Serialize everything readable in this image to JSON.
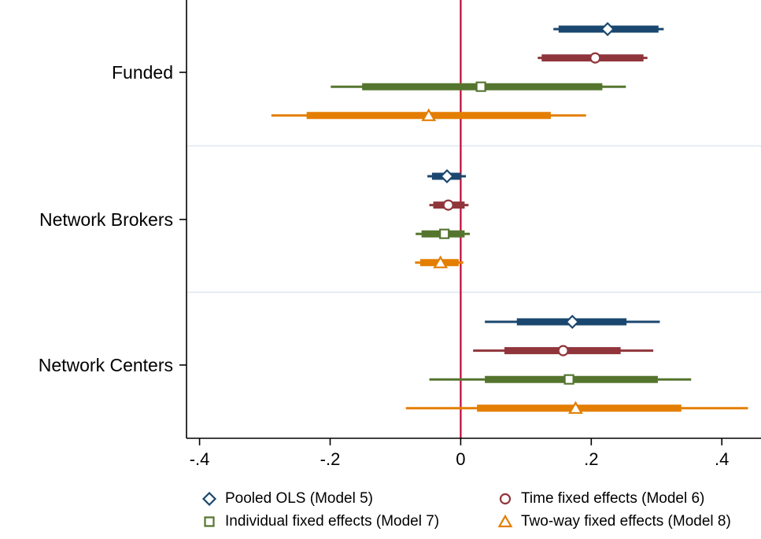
{
  "chart_data": {
    "type": "forest",
    "title": "",
    "xlabel": "",
    "ylabel": "",
    "x_ticks": [
      -0.4,
      -0.2,
      0,
      0.2,
      0.4
    ],
    "x_tick_labels": [
      "-.4",
      "-.2",
      "0",
      ".2",
      ".4"
    ],
    "xlim": [
      -0.42,
      0.46
    ],
    "zero_line": 0,
    "zero_line_color": "#c10534",
    "separator_color": "#dfe9f2",
    "axis_color": "#000000",
    "grid": false,
    "legend_position": "bottom",
    "groups": [
      "Funded",
      "Network Brokers",
      "Network Centers"
    ],
    "series": [
      {
        "name": "Pooled OLS (Model 5)",
        "marker": "diamond",
        "color": "#1a476f",
        "estimates": [
          {
            "group": "Funded",
            "est": 0.225,
            "ci_inner": [
              0.15,
              0.303
            ],
            "ci_outer": [
              0.142,
              0.311
            ]
          },
          {
            "group": "Network Brokers",
            "est": -0.021,
            "ci_inner": [
              -0.044,
              0.0
            ],
            "ci_outer": [
              -0.051,
              0.008
            ]
          },
          {
            "group": "Network Centers",
            "est": 0.171,
            "ci_inner": [
              0.086,
              0.254
            ],
            "ci_outer": [
              0.037,
              0.305
            ]
          }
        ]
      },
      {
        "name": "Time fixed effects (Model 6)",
        "marker": "circle",
        "color": "#90353b",
        "estimates": [
          {
            "group": "Funded",
            "est": 0.206,
            "ci_inner": [
              0.124,
              0.28
            ],
            "ci_outer": [
              0.118,
              0.286
            ]
          },
          {
            "group": "Network Brokers",
            "est": -0.019,
            "ci_inner": [
              -0.042,
              0.006
            ],
            "ci_outer": [
              -0.048,
              0.012
            ]
          },
          {
            "group": "Network Centers",
            "est": 0.157,
            "ci_inner": [
              0.067,
              0.245
            ],
            "ci_outer": [
              0.019,
              0.295
            ]
          }
        ]
      },
      {
        "name": "Individual fixed effects (Model 7)",
        "marker": "square",
        "color": "#55752f",
        "estimates": [
          {
            "group": "Funded",
            "est": 0.031,
            "ci_inner": [
              -0.151,
              0.217
            ],
            "ci_outer": [
              -0.199,
              0.253
            ]
          },
          {
            "group": "Network Brokers",
            "est": -0.025,
            "ci_inner": [
              -0.06,
              0.006
            ],
            "ci_outer": [
              -0.069,
              0.014
            ]
          },
          {
            "group": "Network Centers",
            "est": 0.166,
            "ci_inner": [
              0.037,
              0.302
            ],
            "ci_outer": [
              -0.048,
              0.353
            ]
          }
        ]
      },
      {
        "name": "Two-way fixed effects (Model 8)",
        "marker": "triangle",
        "color": "#e37e00",
        "estimates": [
          {
            "group": "Funded",
            "est": -0.049,
            "ci_inner": [
              -0.236,
              0.138
            ],
            "ci_outer": [
              -0.29,
              0.192
            ]
          },
          {
            "group": "Network Brokers",
            "est": -0.031,
            "ci_inner": [
              -0.062,
              -0.003
            ],
            "ci_outer": [
              -0.07,
              0.004
            ]
          },
          {
            "group": "Network Centers",
            "est": 0.176,
            "ci_inner": [
              0.025,
              0.338
            ],
            "ci_outer": [
              -0.084,
              0.44
            ]
          }
        ]
      }
    ]
  }
}
